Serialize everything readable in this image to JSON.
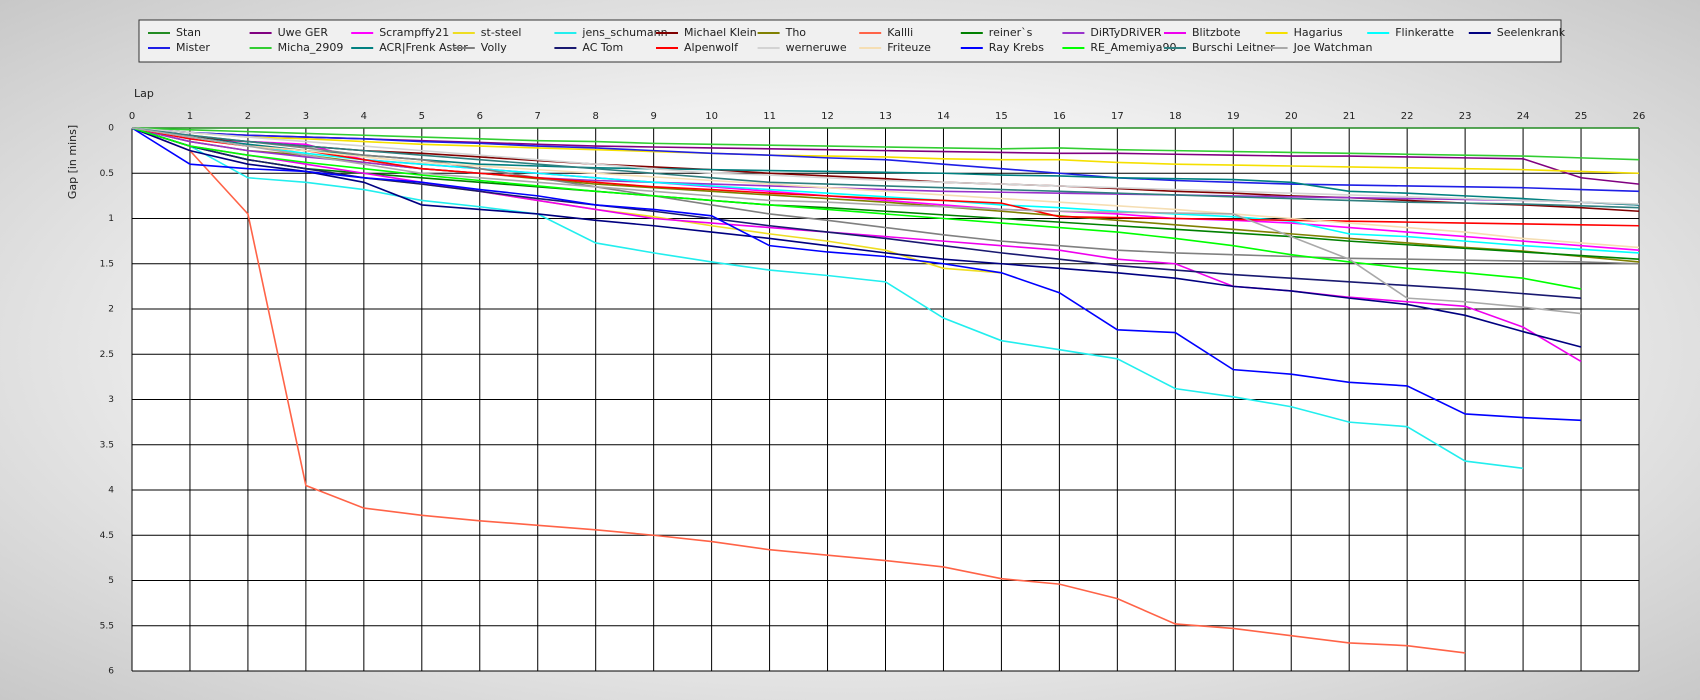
{
  "chart_data": {
    "type": "line",
    "xlabel": "Lap",
    "ylabel": "Gap [in mins]",
    "x": [
      0,
      1,
      2,
      3,
      4,
      5,
      6,
      7,
      8,
      9,
      10,
      11,
      12,
      13,
      14,
      15,
      16,
      17,
      18,
      19,
      20,
      21,
      22,
      23,
      24,
      25,
      26
    ],
    "xlim": [
      0,
      26
    ],
    "xticks": [
      0,
      1,
      2,
      3,
      4,
      5,
      6,
      7,
      8,
      9,
      10,
      11,
      12,
      13,
      14,
      15,
      16,
      17,
      18,
      19,
      20,
      21,
      22,
      23,
      24,
      25,
      26
    ],
    "ylim": [
      0,
      6
    ],
    "yticks": [
      0,
      0.5,
      1,
      1.5,
      2,
      2.5,
      3,
      3.5,
      4,
      4.5,
      5,
      5.5,
      6
    ],
    "y_inverted": true,
    "grid": true,
    "legend_position": "top",
    "series": [
      {
        "name": "Stan",
        "color": "#228b22",
        "values": [
          0,
          0,
          0,
          0,
          0,
          0,
          0,
          0,
          0,
          0,
          0,
          0,
          0,
          0,
          0,
          0,
          0,
          0,
          0,
          0,
          0,
          0,
          0,
          0,
          0,
          0,
          0
        ]
      },
      {
        "name": "Uwe GER",
        "color": "#800080",
        "values": [
          0,
          0.05,
          0.08,
          0.1,
          0.12,
          0.14,
          0.16,
          0.18,
          0.2,
          0.21,
          0.22,
          0.23,
          0.24,
          0.25,
          0.26,
          0.27,
          0.28,
          0.28,
          0.29,
          0.3,
          0.31,
          0.31,
          0.32,
          0.33,
          0.34,
          0.55,
          0.62
        ]
      },
      {
        "name": "Scrampffy21",
        "color": "#ff00ff",
        "values": [
          0,
          0.12,
          0.15,
          0.18,
          0.35,
          0.4,
          0.45,
          0.5,
          0.55,
          0.6,
          0.65,
          0.7,
          0.75,
          0.8,
          0.85,
          0.9,
          0.92,
          0.95,
          1.0,
          1.02,
          1.05,
          1.1,
          1.15,
          1.2,
          1.25,
          1.3,
          1.35
        ]
      },
      {
        "name": "st-steel",
        "color": "#eedd22",
        "values": [
          0,
          0.2,
          0.35,
          0.45,
          0.55,
          0.62,
          0.7,
          0.8,
          0.9,
          0.98,
          1.08,
          1.17,
          1.25,
          1.35,
          1.55,
          1.6,
          null,
          null,
          null,
          null,
          null,
          null,
          null,
          null,
          null,
          null,
          null
        ]
      },
      {
        "name": "jens_schumann",
        "color": "#22eeee",
        "values": [
          0,
          0.2,
          0.55,
          0.6,
          0.68,
          0.8,
          0.87,
          0.95,
          1.27,
          1.38,
          1.48,
          1.57,
          1.63,
          1.7,
          2.1,
          2.35,
          2.45,
          2.55,
          2.88,
          2.97,
          3.08,
          3.25,
          3.3,
          3.68,
          3.76,
          null,
          null
        ]
      },
      {
        "name": "Michael Klein",
        "color": "#800000",
        "values": [
          0,
          0.1,
          0.15,
          0.2,
          0.25,
          0.28,
          0.32,
          0.36,
          0.4,
          0.43,
          0.46,
          0.5,
          0.53,
          0.56,
          0.6,
          0.62,
          0.64,
          0.67,
          0.7,
          0.72,
          0.75,
          0.77,
          0.8,
          0.83,
          0.85,
          0.88,
          0.92
        ]
      },
      {
        "name": "Tho",
        "color": "#808000",
        "values": [
          0,
          0.15,
          0.25,
          0.3,
          0.38,
          0.45,
          0.5,
          0.56,
          0.62,
          0.66,
          0.7,
          0.74,
          0.78,
          0.82,
          0.87,
          0.92,
          0.97,
          1.02,
          1.07,
          1.12,
          1.17,
          1.22,
          1.27,
          1.32,
          1.36,
          1.42,
          1.48
        ]
      },
      {
        "name": "Kallli",
        "color": "#ff6347",
        "values": [
          0,
          0.25,
          0.95,
          3.95,
          4.2,
          4.28,
          4.34,
          4.39,
          4.44,
          4.5,
          4.57,
          4.66,
          4.72,
          4.78,
          4.85,
          4.98,
          5.04,
          5.2,
          5.48,
          5.53,
          5.61,
          5.69,
          5.72,
          5.8,
          null,
          null,
          null
        ]
      },
      {
        "name": "reiner`s",
        "color": "#008000",
        "values": [
          0,
          0.2,
          0.35,
          0.45,
          0.5,
          0.55,
          0.6,
          0.65,
          0.7,
          0.75,
          0.8,
          0.85,
          0.88,
          0.92,
          0.96,
          1.0,
          1.04,
          1.08,
          1.12,
          1.16,
          1.2,
          1.25,
          1.29,
          1.33,
          1.37,
          1.41,
          1.45
        ]
      },
      {
        "name": "DiRTyDRiVER",
        "color": "#9932cc",
        "values": [
          0,
          0.15,
          0.25,
          0.32,
          0.38,
          0.45,
          0.5,
          0.55,
          0.58,
          0.6,
          0.62,
          0.64,
          0.66,
          0.68,
          0.7,
          0.71,
          0.72,
          0.73,
          0.74,
          0.75,
          0.76,
          0.77,
          0.78,
          0.79,
          0.8,
          0.82,
          0.85
        ]
      },
      {
        "name": "Blitzbote",
        "color": "#ee00ee",
        "values": [
          0,
          0.2,
          0.3,
          0.4,
          0.5,
          0.6,
          0.7,
          0.8,
          0.9,
          1.0,
          1.05,
          1.1,
          1.15,
          1.2,
          1.25,
          1.3,
          1.35,
          1.45,
          1.5,
          1.75,
          1.8,
          1.87,
          1.92,
          1.97,
          2.2,
          2.58,
          null
        ]
      },
      {
        "name": "Hagarius",
        "color": "#f5e000",
        "values": [
          0,
          0.05,
          0.1,
          0.12,
          0.15,
          0.18,
          0.2,
          0.22,
          0.24,
          0.26,
          0.28,
          0.3,
          0.31,
          0.32,
          0.34,
          0.35,
          0.35,
          0.38,
          0.4,
          0.41,
          0.42,
          0.43,
          0.44,
          0.45,
          0.46,
          0.48,
          0.5
        ]
      },
      {
        "name": "Flinkeratte",
        "color": "#00ffff",
        "values": [
          0,
          0.1,
          0.2,
          0.28,
          0.35,
          0.4,
          0.45,
          0.5,
          0.55,
          0.6,
          0.64,
          0.68,
          0.72,
          0.76,
          0.8,
          0.85,
          0.88,
          0.92,
          0.95,
          0.98,
          1.03,
          1.17,
          1.2,
          1.25,
          1.3,
          1.34,
          1.38
        ]
      },
      {
        "name": "Seelenkrank",
        "color": "#000080",
        "values": [
          0,
          0.25,
          0.4,
          0.48,
          0.6,
          0.85,
          0.9,
          0.95,
          1.02,
          1.08,
          1.15,
          1.22,
          1.3,
          1.38,
          1.45,
          1.5,
          1.55,
          1.6,
          1.66,
          1.75,
          1.8,
          1.88,
          1.95,
          2.07,
          2.25,
          2.42,
          null
        ]
      },
      {
        "name": "Mister",
        "color": "#1e1ee6",
        "values": [
          0,
          0.05,
          0.08,
          0.1,
          0.12,
          0.15,
          0.17,
          0.2,
          0.22,
          0.25,
          0.28,
          0.3,
          0.33,
          0.35,
          0.4,
          0.45,
          0.5,
          0.55,
          0.58,
          0.6,
          0.62,
          0.63,
          0.64,
          0.65,
          0.66,
          0.68,
          0.7
        ]
      },
      {
        "name": "Micha_2909",
        "color": "#32cd32",
        "values": [
          0,
          0.02,
          0.04,
          0.06,
          0.08,
          0.1,
          0.12,
          0.14,
          0.15,
          0.17,
          0.18,
          0.19,
          0.2,
          0.21,
          0.22,
          0.23,
          0.22,
          0.24,
          0.25,
          0.26,
          0.27,
          0.28,
          0.29,
          0.3,
          0.31,
          0.33,
          0.35
        ]
      },
      {
        "name": "ACR|Frenk Astor",
        "color": "#008080",
        "values": [
          0,
          0.1,
          0.18,
          0.25,
          0.3,
          0.35,
          0.4,
          0.42,
          0.44,
          0.45,
          0.46,
          0.47,
          0.48,
          0.49,
          0.5,
          0.52,
          0.53,
          0.55,
          0.56,
          0.57,
          0.6,
          0.7,
          0.72,
          0.75,
          0.78,
          0.82,
          0.85
        ]
      },
      {
        "name": "Volly",
        "color": "#808080",
        "values": [
          0,
          0.08,
          0.15,
          0.22,
          0.3,
          0.35,
          0.45,
          0.55,
          0.65,
          0.75,
          0.85,
          0.95,
          1.02,
          1.1,
          1.18,
          1.25,
          1.3,
          1.35,
          1.38,
          1.4,
          1.42,
          1.44,
          1.45,
          1.46,
          1.47,
          1.48,
          1.5
        ]
      },
      {
        "name": "AC Tom",
        "color": "#191970",
        "values": [
          0,
          0.2,
          0.35,
          0.45,
          0.55,
          0.62,
          0.7,
          0.78,
          0.85,
          0.92,
          1.0,
          1.08,
          1.15,
          1.22,
          1.3,
          1.38,
          1.45,
          1.52,
          1.57,
          1.62,
          1.66,
          1.7,
          1.74,
          1.78,
          1.83,
          1.88,
          null
        ]
      },
      {
        "name": "Alpenwolf",
        "color": "#ff0000",
        "values": [
          0,
          0.12,
          0.2,
          0.25,
          0.35,
          0.45,
          0.5,
          0.55,
          0.6,
          0.65,
          0.68,
          0.72,
          0.75,
          0.78,
          0.8,
          0.83,
          0.98,
          0.99,
          1.0,
          1.01,
          1.02,
          1.03,
          1.04,
          1.05,
          1.06,
          1.07,
          1.08
        ]
      },
      {
        "name": "werneruwe",
        "color": "#d3d3d3",
        "values": [
          0,
          0.05,
          0.1,
          0.15,
          0.2,
          0.25,
          0.3,
          0.35,
          0.4,
          0.45,
          0.5,
          0.52,
          0.55,
          0.58,
          0.6,
          0.62,
          0.64,
          0.66,
          0.68,
          0.7,
          0.72,
          0.74,
          0.76,
          0.78,
          0.8,
          0.82,
          0.84
        ]
      },
      {
        "name": "Friteuze",
        "color": "#f5deb3",
        "values": [
          0,
          0.1,
          0.2,
          0.25,
          0.32,
          0.38,
          0.42,
          0.46,
          0.5,
          0.54,
          0.58,
          0.62,
          0.66,
          0.7,
          0.74,
          0.78,
          0.82,
          0.86,
          0.9,
          0.95,
          1.0,
          1.05,
          1.1,
          1.15,
          1.22,
          1.27,
          1.32
        ]
      },
      {
        "name": "Ray Krebs",
        "color": "#0000ff",
        "values": [
          0,
          0.4,
          0.45,
          0.48,
          0.55,
          0.6,
          0.68,
          0.75,
          0.85,
          0.9,
          0.97,
          1.3,
          1.37,
          1.42,
          1.5,
          1.6,
          1.82,
          2.23,
          2.26,
          2.67,
          2.72,
          2.81,
          2.85,
          3.16,
          3.2,
          3.23,
          null
        ]
      },
      {
        "name": "RE_Amemiya90",
        "color": "#00ff00",
        "values": [
          0,
          0.2,
          0.3,
          0.38,
          0.45,
          0.52,
          0.58,
          0.64,
          0.7,
          0.75,
          0.8,
          0.85,
          0.9,
          0.95,
          1.0,
          1.05,
          1.1,
          1.15,
          1.22,
          1.3,
          1.4,
          1.48,
          1.55,
          1.6,
          1.66,
          1.78,
          null
        ]
      },
      {
        "name": "Burschi Leitner",
        "color": "#2f7f7f",
        "values": [
          0,
          0.08,
          0.15,
          0.2,
          0.25,
          0.3,
          0.35,
          0.4,
          0.45,
          0.5,
          0.55,
          0.6,
          0.62,
          0.64,
          0.66,
          0.68,
          0.7,
          0.72,
          0.74,
          0.76,
          0.78,
          0.8,
          0.82,
          0.83,
          0.84,
          0.86,
          0.88
        ]
      },
      {
        "name": "Joe Watchman",
        "color": "#a9a9a9",
        "values": [
          0,
          0.1,
          0.2,
          0.3,
          0.4,
          0.5,
          0.55,
          0.6,
          0.65,
          0.7,
          0.75,
          0.8,
          0.82,
          0.85,
          0.87,
          0.9,
          0.92,
          0.93,
          0.94,
          0.95,
          1.2,
          1.45,
          1.88,
          1.92,
          1.98,
          2.05,
          null
        ]
      }
    ]
  }
}
